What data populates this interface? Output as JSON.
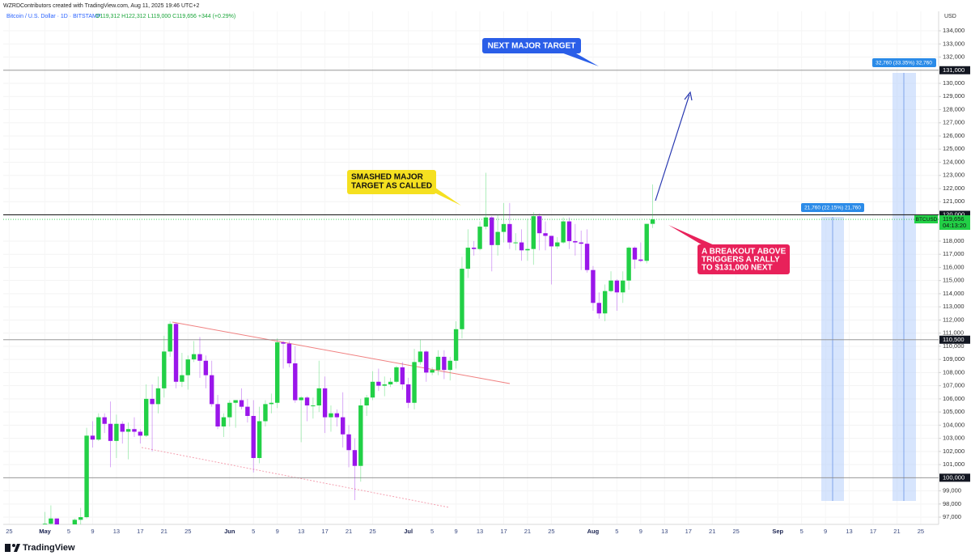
{
  "header": {
    "credit": "WZRDContributors created with TradingView.com, Aug 11, 2025 19:46 UTC+2",
    "symbol": "Bitcoin / U.S. Dollar · 1D · BITSTAMP",
    "ohlc": "O119,312 H122,312 L119,000 C119,656 +344 (+0.29%)"
  },
  "chart_data": {
    "type": "candlestick",
    "axis_unit": "USD",
    "up_color": "#22d046",
    "down_color": "#9a16ea",
    "x": [
      "2025-05-01",
      "2025-05-02",
      "2025-05-03",
      "2025-05-04",
      "2025-05-05",
      "2025-05-06",
      "2025-05-07",
      "2025-05-08",
      "2025-05-09",
      "2025-05-10",
      "2025-05-11",
      "2025-05-12",
      "2025-05-13",
      "2025-05-14",
      "2025-05-15",
      "2025-05-16",
      "2025-05-17",
      "2025-05-18",
      "2025-05-19",
      "2025-05-20",
      "2025-05-21",
      "2025-05-22",
      "2025-05-23",
      "2025-05-24",
      "2025-05-25",
      "2025-05-26",
      "2025-05-27",
      "2025-05-28",
      "2025-05-29",
      "2025-05-30",
      "2025-05-31",
      "2025-06-01",
      "2025-06-02",
      "2025-06-03",
      "2025-06-04",
      "2025-06-05",
      "2025-06-06",
      "2025-06-07",
      "2025-06-08",
      "2025-06-09",
      "2025-06-10",
      "2025-06-11",
      "2025-06-12",
      "2025-06-13",
      "2025-06-14",
      "2025-06-15",
      "2025-06-16",
      "2025-06-17",
      "2025-06-18",
      "2025-06-19",
      "2025-06-20",
      "2025-06-21",
      "2025-06-22",
      "2025-06-23",
      "2025-06-24",
      "2025-06-25",
      "2025-06-26",
      "2025-06-27",
      "2025-06-28",
      "2025-06-29",
      "2025-06-30",
      "2025-07-01",
      "2025-07-02",
      "2025-07-03",
      "2025-07-04",
      "2025-07-05",
      "2025-07-06",
      "2025-07-07",
      "2025-07-08",
      "2025-07-09",
      "2025-07-10",
      "2025-07-11",
      "2025-07-12",
      "2025-07-13",
      "2025-07-14",
      "2025-07-15",
      "2025-07-16",
      "2025-07-17",
      "2025-07-18",
      "2025-07-19",
      "2025-07-20",
      "2025-07-21",
      "2025-07-22",
      "2025-07-23",
      "2025-07-24",
      "2025-07-25",
      "2025-07-26",
      "2025-07-27",
      "2025-07-28",
      "2025-07-29",
      "2025-07-30",
      "2025-07-31",
      "2025-08-01",
      "2025-08-02",
      "2025-08-03",
      "2025-08-04",
      "2025-08-05",
      "2025-08-06",
      "2025-08-07",
      "2025-08-08",
      "2025-08-09",
      "2025-08-10",
      "2025-08-11"
    ],
    "open": [
      94200,
      96500,
      96900,
      95900,
      94300,
      94700,
      96800,
      97000,
      103200,
      102900,
      104600,
      104100,
      102800,
      104100,
      103500,
      103700,
      103500,
      103200,
      106000,
      105600,
      106800,
      109600,
      111700,
      107300,
      107800,
      109000,
      109400,
      108900,
      107800,
      105600,
      103900,
      104600,
      105700,
      105900,
      105400,
      104700,
      101500,
      104300,
      105600,
      105700,
      110300,
      110200,
      108700,
      105900,
      106100,
      105500,
      105500,
      106800,
      104600,
      104900,
      104600,
      103300,
      102100,
      100900,
      105500,
      106100,
      107300,
      107000,
      107100,
      107300,
      108400,
      107100,
      105700,
      108800,
      109600,
      108000,
      108200,
      109200,
      108200,
      108900,
      111300,
      115900,
      117500,
      117400,
      119100,
      119800,
      117700,
      118700,
      119300,
      117900,
      117900,
      117300,
      117400,
      119900,
      118600,
      118400,
      117600,
      117900,
      119500,
      118000,
      117900,
      117800,
      115800,
      113300,
      112500,
      114200,
      115000,
      114100,
      115000,
      117500,
      116600,
      116500,
      119312
    ],
    "high": [
      97400,
      97900,
      96900,
      96300,
      95200,
      96900,
      97700,
      103800,
      104300,
      104900,
      104900,
      105800,
      104800,
      104300,
      104200,
      104600,
      103700,
      107100,
      107100,
      107700,
      110800,
      111900,
      111800,
      109500,
      109300,
      110400,
      110700,
      109300,
      108900,
      106300,
      104900,
      105900,
      105900,
      106800,
      106000,
      105900,
      105400,
      105900,
      106400,
      110600,
      110400,
      110400,
      110000,
      106200,
      106200,
      106100,
      108900,
      107700,
      105500,
      105200,
      106500,
      104000,
      103000,
      106000,
      106300,
      108100,
      108300,
      107700,
      107600,
      108500,
      108800,
      107600,
      109800,
      110500,
      109700,
      108400,
      109700,
      109700,
      109200,
      111900,
      116800,
      118900,
      118000,
      119500,
      123200,
      119900,
      120000,
      120900,
      120900,
      118600,
      118900,
      119700,
      120200,
      120100,
      119500,
      118400,
      118300,
      119800,
      119800,
      119300,
      118800,
      118900,
      116100,
      114100,
      114700,
      115700,
      115100,
      115700,
      117600,
      117600,
      117900,
      119300,
      122312
    ],
    "low": [
      94100,
      96300,
      95700,
      94100,
      93500,
      93400,
      95800,
      96900,
      102300,
      102800,
      103400,
      100800,
      101500,
      102600,
      101400,
      103100,
      102600,
      103100,
      102000,
      104900,
      106100,
      109200,
      106800,
      106900,
      106700,
      108800,
      107600,
      106800,
      105400,
      103700,
      103100,
      103900,
      103800,
      105200,
      104200,
      100400,
      101100,
      103900,
      104900,
      105300,
      108300,
      108400,
      105700,
      102700,
      104300,
      104500,
      105000,
      103400,
      103500,
      103900,
      102300,
      100800,
      98300,
      99700,
      104700,
      105900,
      106600,
      106200,
      106900,
      107200,
      106700,
      105300,
      105200,
      108600,
      107300,
      107800,
      107800,
      107500,
      107400,
      108300,
      110600,
      115200,
      116900,
      117300,
      118900,
      115700,
      116900,
      117900,
      117400,
      117300,
      116500,
      116500,
      116200,
      117300,
      117300,
      114700,
      117400,
      117800,
      117400,
      116900,
      115800,
      115600,
      112700,
      112100,
      111900,
      114100,
      112700,
      113300,
      114300,
      115900,
      116400,
      116300,
      119000
    ],
    "close": [
      96500,
      96900,
      95900,
      94300,
      94700,
      96800,
      97000,
      103200,
      102900,
      104600,
      104100,
      102800,
      104100,
      103500,
      103700,
      103500,
      103200,
      106000,
      105600,
      106800,
      109600,
      111700,
      107300,
      107800,
      109000,
      109400,
      108900,
      107800,
      105600,
      103900,
      104600,
      105700,
      105900,
      105400,
      104700,
      101500,
      104300,
      105600,
      105700,
      110300,
      110200,
      108700,
      105900,
      106100,
      105500,
      105500,
      106800,
      104600,
      104900,
      104600,
      103300,
      102100,
      100900,
      105500,
      106100,
      107300,
      107000,
      107100,
      107300,
      108400,
      107100,
      105700,
      108800,
      109600,
      108000,
      108200,
      109200,
      108200,
      108900,
      111300,
      115900,
      117500,
      117400,
      119100,
      119800,
      117700,
      118700,
      119300,
      117900,
      117900,
      117300,
      117400,
      119900,
      118600,
      118400,
      117600,
      117900,
      119500,
      118000,
      117900,
      117800,
      115800,
      113300,
      112500,
      114200,
      115000,
      114100,
      115000,
      117500,
      116600,
      116500,
      119312,
      119656
    ],
    "xlim": [
      "2025-04-24",
      "2025-09-28"
    ],
    "ylim": [
      96450,
      135480
    ],
    "xticks": [
      {
        "value": "2025-04-25",
        "label": "25"
      },
      {
        "value": "2025-05-01",
        "label": "May"
      },
      {
        "value": "2025-05-05",
        "label": "5"
      },
      {
        "value": "2025-05-09",
        "label": "9"
      },
      {
        "value": "2025-05-13",
        "label": "13"
      },
      {
        "value": "2025-05-17",
        "label": "17"
      },
      {
        "value": "2025-05-21",
        "label": "21"
      },
      {
        "value": "2025-05-25",
        "label": "25"
      },
      {
        "value": "2025-06-01",
        "label": "Jun"
      },
      {
        "value": "2025-06-05",
        "label": "5"
      },
      {
        "value": "2025-06-09",
        "label": "9"
      },
      {
        "value": "2025-06-13",
        "label": "13"
      },
      {
        "value": "2025-06-17",
        "label": "17"
      },
      {
        "value": "2025-06-21",
        "label": "21"
      },
      {
        "value": "2025-06-25",
        "label": "25"
      },
      {
        "value": "2025-07-01",
        "label": "Jul"
      },
      {
        "value": "2025-07-05",
        "label": "5"
      },
      {
        "value": "2025-07-09",
        "label": "9"
      },
      {
        "value": "2025-07-13",
        "label": "13"
      },
      {
        "value": "2025-07-17",
        "label": "17"
      },
      {
        "value": "2025-07-21",
        "label": "21"
      },
      {
        "value": "2025-07-25",
        "label": "25"
      },
      {
        "value": "2025-08-01",
        "label": "Aug"
      },
      {
        "value": "2025-08-05",
        "label": "5"
      },
      {
        "value": "2025-08-09",
        "label": "9"
      },
      {
        "value": "2025-08-13",
        "label": "13"
      },
      {
        "value": "2025-08-17",
        "label": "17"
      },
      {
        "value": "2025-08-21",
        "label": "21"
      },
      {
        "value": "2025-08-25",
        "label": "25"
      },
      {
        "value": "2025-09-01",
        "label": "Sep"
      },
      {
        "value": "2025-09-05",
        "label": "5"
      },
      {
        "value": "2025-09-09",
        "label": "9"
      },
      {
        "value": "2025-09-13",
        "label": "13"
      },
      {
        "value": "2025-09-17",
        "label": "17"
      },
      {
        "value": "2025-09-21",
        "label": "21"
      },
      {
        "value": "2025-09-25",
        "label": "25"
      }
    ],
    "yticks": [
      {
        "value": 97000,
        "label": "97,000"
      },
      {
        "value": 98000,
        "label": "98,000"
      },
      {
        "value": 99000,
        "label": "99,000"
      },
      {
        "value": 101000,
        "label": "101,000"
      },
      {
        "value": 102000,
        "label": "102,000"
      },
      {
        "value": 103000,
        "label": "103,000"
      },
      {
        "value": 104000,
        "label": "104,000"
      },
      {
        "value": 105000,
        "label": "105,000"
      },
      {
        "value": 106000,
        "label": "106,000"
      },
      {
        "value": 107000,
        "label": "107,000"
      },
      {
        "value": 108000,
        "label": "108,000"
      },
      {
        "value": 109000,
        "label": "109,000"
      },
      {
        "value": 110000,
        "label": "110,000"
      },
      {
        "value": 111000,
        "label": "111,000"
      },
      {
        "value": 112000,
        "label": "112,000"
      },
      {
        "value": 113000,
        "label": "113,000"
      },
      {
        "value": 114000,
        "label": "114,000"
      },
      {
        "value": 115000,
        "label": "115,000"
      },
      {
        "value": 116000,
        "label": "116,000"
      },
      {
        "value": 117000,
        "label": "117,000"
      },
      {
        "value": 118000,
        "label": "118,000"
      },
      {
        "value": 121000,
        "label": "121,000"
      },
      {
        "value": 122000,
        "label": "122,000"
      },
      {
        "value": 123000,
        "label": "123,000"
      },
      {
        "value": 124000,
        "label": "124,000"
      },
      {
        "value": 125000,
        "label": "125,000"
      },
      {
        "value": 126000,
        "label": "126,000"
      },
      {
        "value": 127000,
        "label": "127,000"
      },
      {
        "value": 128000,
        "label": "128,000"
      },
      {
        "value": 129000,
        "label": "129,000"
      },
      {
        "value": 130000,
        "label": "130,000"
      },
      {
        "value": 132000,
        "label": "132,000"
      },
      {
        "value": 133000,
        "label": "133,000"
      },
      {
        "value": 134000,
        "label": "134,000"
      }
    ],
    "levels": [
      {
        "value": 131000,
        "label": "131,000"
      },
      {
        "value": 120000,
        "label": "120,000"
      },
      {
        "value": 110500,
        "label": "110,500"
      },
      {
        "value": 100000,
        "label": "100,000"
      }
    ],
    "last_price": {
      "value": 119656,
      "label": "119,656"
    },
    "symbol_tag": "BTCUSD",
    "countdown": "04:13:20",
    "annotations": [
      [
        "NEXT MAJOR TARGET"
      ],
      [
        "SMASHED MAJOR",
        "TARGET AS CALLED"
      ],
      [
        "A BREAKOUT ABOVE",
        "TRIGGERS A RALLY",
        "TO  $131,000 NEXT"
      ]
    ],
    "measures": [
      "21,760 (22.15%) 21,760",
      "32,760 (33.35%) 32,760"
    ]
  },
  "footer": {
    "logo": "TradingView"
  }
}
